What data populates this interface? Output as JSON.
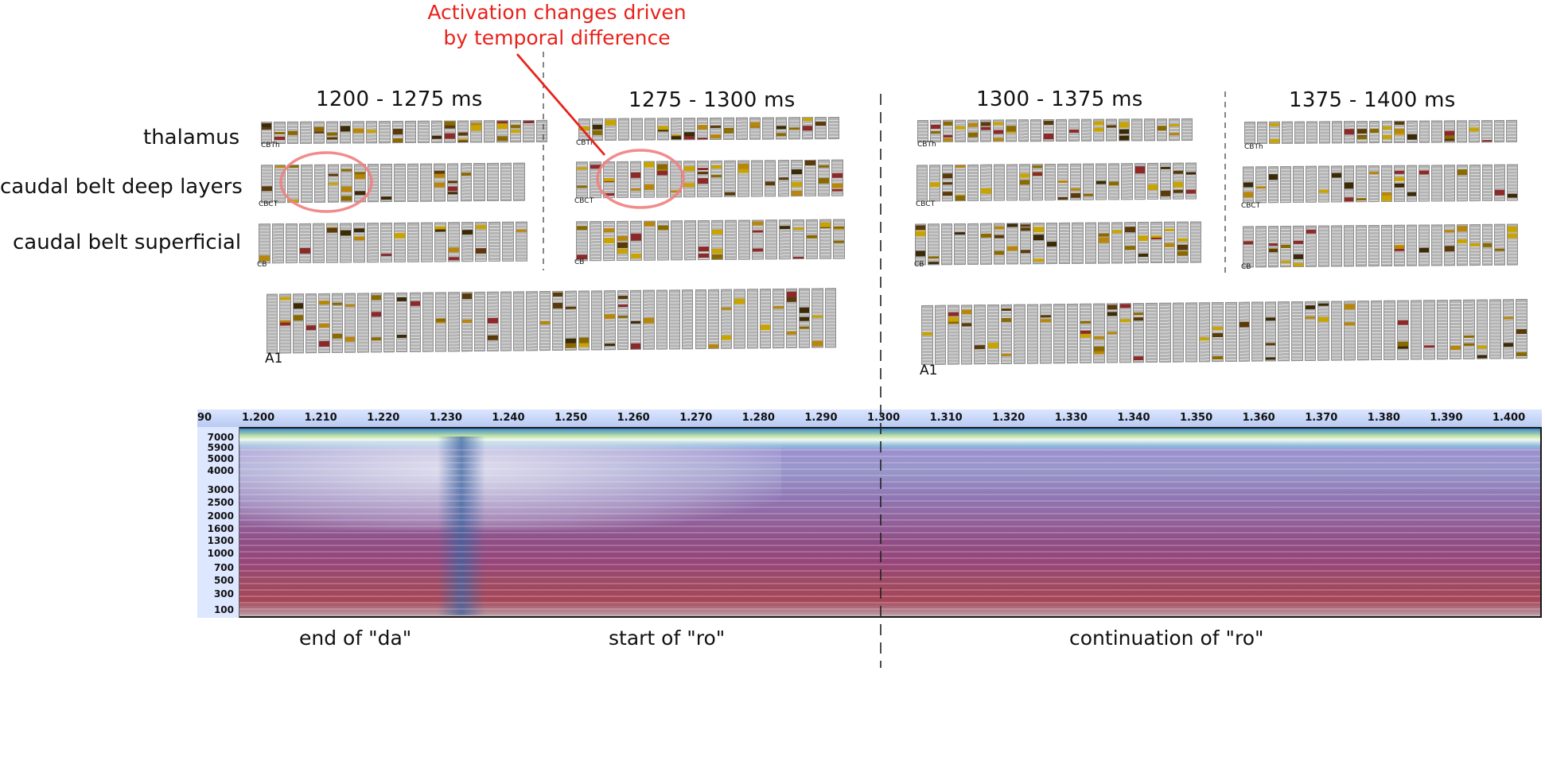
{
  "annotation": {
    "line1": "Activation changes driven",
    "line2": "by temporal difference",
    "color": "#e8221b"
  },
  "windows": [
    "1200 - 1275 ms",
    "1275 - 1300 ms",
    "1300 - 1375 ms",
    "1375 - 1400 ms"
  ],
  "row_labels": {
    "thalamus": "thalamus",
    "deep": "caudal belt deep layers",
    "superficial": "caudal belt superficial"
  },
  "panel_labels": {
    "cbth": "CBTh",
    "cbct": "CBCT",
    "cb": "CB",
    "a1": "A1"
  },
  "ruler": {
    "left_partial": "90",
    "ticks": [
      "1.200",
      "1.210",
      "1.220",
      "1.230",
      "1.240",
      "1.250",
      "1.260",
      "1.270",
      "1.280",
      "1.290",
      "1.300",
      "1.310",
      "1.320",
      "1.330",
      "1.340",
      "1.350",
      "1.360",
      "1.370",
      "1.380",
      "1.390",
      "1.400"
    ]
  },
  "freq_labels": [
    "7000",
    "5900",
    "5000",
    "4000",
    "3000",
    "2500",
    "2000",
    "1600",
    "1300",
    "1000",
    "700",
    "500",
    "300",
    "100"
  ],
  "phases": {
    "da_end": "end of \"da\"",
    "ro_start": "start of \"ro\"",
    "ro_cont": "continuation of \"ro\""
  },
  "colors": {
    "cell_base": "#b3b3b3",
    "activity_yellow": "#c9a400",
    "activity_brown": "#5a3a0a",
    "activity_red": "#8c2a2a",
    "highlight_circle": "#f08080"
  }
}
